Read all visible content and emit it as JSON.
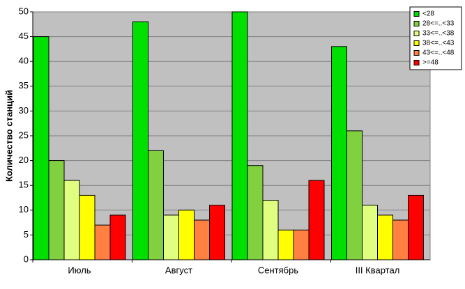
{
  "chart_data": {
    "type": "bar",
    "y_label": "Количество станций",
    "categories": [
      "Июль",
      "Август",
      "Сентябрь",
      "III Квартал"
    ],
    "series": [
      {
        "name": "<28",
        "color": "#00e000",
        "values": [
          45,
          48,
          50,
          43
        ]
      },
      {
        "name": "28<=..<33",
        "color": "#80d040",
        "values": [
          20,
          22,
          19,
          26
        ]
      },
      {
        "name": "33<=..<38",
        "color": "#e0ff80",
        "values": [
          16,
          9,
          12,
          11
        ]
      },
      {
        "name": "38<=..<43",
        "color": "#ffff00",
        "values": [
          13,
          10,
          6,
          9
        ]
      },
      {
        "name": "43<=..<48",
        "color": "#ff8040",
        "values": [
          7,
          8,
          6,
          8
        ]
      },
      {
        "name": ">=48",
        "color": "#ff0000",
        "values": [
          9,
          11,
          16,
          13
        ]
      }
    ],
    "ylim": [
      0,
      50
    ],
    "yticks": [
      0,
      5,
      10,
      15,
      20,
      25,
      30,
      35,
      40,
      45,
      50
    ],
    "grid": true,
    "legend": "top-right"
  }
}
